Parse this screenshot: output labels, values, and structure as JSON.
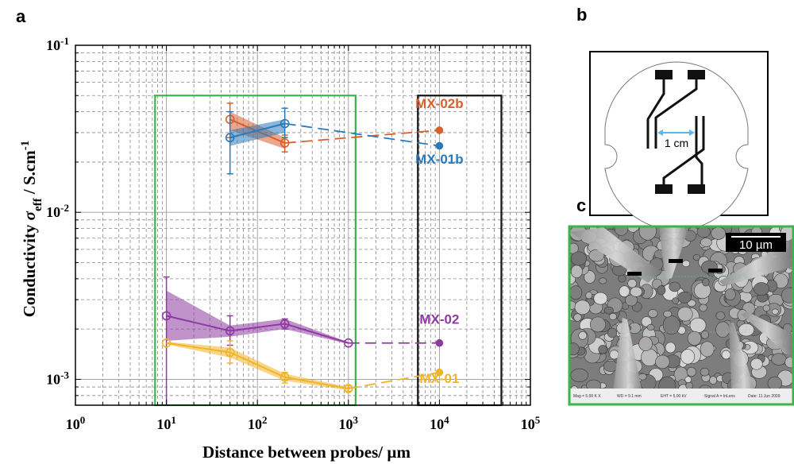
{
  "panels": {
    "a": "a",
    "b": "b",
    "c": "c"
  },
  "chart_data": {
    "type": "line",
    "xscale": "log",
    "yscale": "log",
    "xlim": [
      1,
      100000
    ],
    "ylim": [
      0.0007,
      0.1
    ],
    "grid": true,
    "xticks": [
      {
        "value": 1,
        "base": "10",
        "exp": "0"
      },
      {
        "value": 10,
        "base": "10",
        "exp": "1"
      },
      {
        "value": 100,
        "base": "10",
        "exp": "2"
      },
      {
        "value": 1000,
        "base": "10",
        "exp": "3"
      },
      {
        "value": 10000,
        "base": "10",
        "exp": "4"
      },
      {
        "value": 100000,
        "base": "10",
        "exp": "5"
      }
    ],
    "yticks": [
      {
        "value": 0.001,
        "base": "10",
        "exp": "-3"
      },
      {
        "value": 0.01,
        "base": "10",
        "exp": "-2"
      },
      {
        "value": 0.1,
        "base": "10",
        "exp": "-1"
      }
    ],
    "xlabel": "Distance between probes/ µm",
    "ylabel": {
      "prefix": "Conductivity ",
      "symbol": "σ",
      "subscript": "eff",
      "unit": " / S.cm",
      "unit_exp": "-1"
    },
    "highlight_boxes": [
      {
        "color": "#3cb44b",
        "x": [
          7.5,
          1200
        ],
        "y": [
          0.0007,
          0.05
        ]
      },
      {
        "color": "#111111",
        "x": [
          5800,
          48000
        ],
        "y": [
          0.0007,
          0.05
        ]
      }
    ],
    "series": [
      {
        "name": "MX-02b",
        "color": "#d95f2b",
        "points": [
          {
            "x": 50,
            "y": 0.036,
            "err": [
              0.028,
              0.045
            ]
          },
          {
            "x": 200,
            "y": 0.026,
            "err": [
              0.023,
              0.029
            ]
          }
        ],
        "band": [
          [
            50,
            0.031,
            0.04
          ],
          [
            200,
            0.024,
            0.028
          ]
        ],
        "bulk": {
          "x": 10000,
          "y": 0.031
        }
      },
      {
        "name": "MX-01b",
        "color": "#2a7ab9",
        "points": [
          {
            "x": 50,
            "y": 0.028,
            "err": [
              0.017,
              0.04
            ]
          },
          {
            "x": 200,
            "y": 0.034,
            "err": [
              0.028,
              0.042
            ]
          }
        ],
        "band": [
          [
            50,
            0.025,
            0.031
          ],
          [
            200,
            0.03,
            0.036
          ]
        ],
        "bulk": {
          "x": 10000,
          "y": 0.025
        }
      },
      {
        "name": "MX-02",
        "color": "#8e3aa1",
        "points": [
          {
            "x": 10,
            "y": 0.0024,
            "err": [
              0.0007,
              0.0041
            ]
          },
          {
            "x": 50,
            "y": 0.00195,
            "err": [
              0.0016,
              0.0024
            ]
          },
          {
            "x": 200,
            "y": 0.00215,
            "err": [
              0.002,
              0.0023
            ]
          },
          {
            "x": 1000,
            "y": 0.00165,
            "err": [
              0.00165,
              0.00165
            ]
          }
        ],
        "band": [
          [
            10,
            0.0017,
            0.0034
          ],
          [
            50,
            0.0018,
            0.0021
          ],
          [
            200,
            0.002,
            0.0023
          ],
          [
            1000,
            0.00163,
            0.00167
          ]
        ],
        "bulk": {
          "x": 10000,
          "y": 0.00165
        }
      },
      {
        "name": "MX-01",
        "color": "#f0b429",
        "points": [
          {
            "x": 10,
            "y": 0.00165,
            "err": [
              0.00165,
              0.00165
            ]
          },
          {
            "x": 50,
            "y": 0.00145,
            "err": [
              0.00125,
              0.0017
            ]
          },
          {
            "x": 200,
            "y": 0.00103,
            "err": [
              0.00095,
              0.0011
            ]
          },
          {
            "x": 1000,
            "y": 0.00088,
            "err": [
              0.00085,
              0.00092
            ]
          }
        ],
        "band": [
          [
            10,
            0.00162,
            0.00168
          ],
          [
            50,
            0.00135,
            0.00155
          ],
          [
            200,
            0.00098,
            0.00108
          ],
          [
            1000,
            0.00086,
            0.0009
          ]
        ],
        "bulk": {
          "x": 10000,
          "y": 0.0011
        }
      }
    ],
    "labels": [
      {
        "series": "MX-02b",
        "x": 10000,
        "y": 0.042
      },
      {
        "series": "MX-01b",
        "x": 10000,
        "y": 0.0195
      },
      {
        "series": "MX-02",
        "x": 10000,
        "y": 0.00215
      },
      {
        "series": "MX-01",
        "x": 10000,
        "y": 0.00095
      }
    ]
  },
  "inset_b": {
    "distance_label": "1 cm",
    "arrow_color": "#5bb8e8"
  },
  "inset_c": {
    "scale_bar_label": "10 µm",
    "border_color": "#3cb44b",
    "metadata": [
      "Mag = 5.00 K X",
      "WD = 9.1 mm",
      "EHT = 5.00 kV",
      "Signal A = InLens",
      "Date: 11 Jun 2009"
    ]
  }
}
